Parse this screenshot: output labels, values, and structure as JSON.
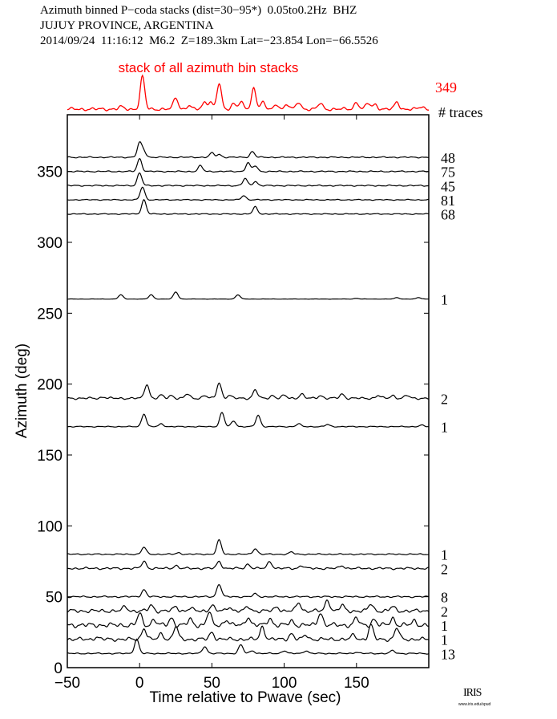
{
  "header": {
    "line1": "Azimuth binned P−coda stacks (dist=30−95*)  0.05to0.2Hz  BHZ",
    "line2": "JUJUY PROVINCE, ARGENTINA",
    "line3": "2014/09/24  11:16:12  M6.2  Z=189.3km Lat=−23.854 Lon=−66.5526"
  },
  "logo": {
    "text": "IRIS",
    "url": "www.iris.edu/spud"
  },
  "chart_data": {
    "type": "line",
    "xlabel": "Time relative to Pwave (sec)",
    "ylabel": "Azimuth (deg)",
    "xlim": [
      -50,
      200
    ],
    "ylim": [
      0,
      390
    ],
    "xticks": [
      "−50",
      "0",
      "50",
      "100",
      "150"
    ],
    "xtick_values": [
      -50,
      0,
      50,
      100,
      150
    ],
    "yticks": [
      "0",
      "50",
      "100",
      "150",
      "200",
      "250",
      "300",
      "350"
    ],
    "ytick_values": [
      0,
      50,
      100,
      150,
      200,
      250,
      300,
      350
    ],
    "count_header": "# traces",
    "stack": {
      "label": "stack of all azimuth bin stacks",
      "count": "349",
      "color": "#ff0000",
      "peaks": [
        [
          -13,
          1
        ],
        [
          2,
          14
        ],
        [
          25,
          5
        ],
        [
          34,
          1.5
        ],
        [
          45,
          3
        ],
        [
          49,
          3
        ],
        [
          55,
          11
        ],
        [
          65,
          2.5
        ],
        [
          70,
          3
        ],
        [
          79,
          9
        ],
        [
          85,
          3
        ],
        [
          95,
          2
        ],
        [
          102,
          2
        ],
        [
          110,
          3
        ],
        [
          125,
          2.5
        ],
        [
          150,
          3
        ],
        [
          158,
          2.5
        ],
        [
          163,
          2
        ],
        [
          178,
          3
        ],
        [
          195,
          1
        ]
      ],
      "noise": 0.6
    },
    "traces": [
      {
        "azimuth": 360,
        "count": "48",
        "peaks": [
          [
            0,
            10
          ],
          [
            3,
            4
          ],
          [
            50,
            3
          ],
          [
            55,
            2
          ],
          [
            78,
            4
          ]
        ],
        "noise": 0.4
      },
      {
        "azimuth": 350,
        "count": "75",
        "peaks": [
          [
            0,
            9
          ],
          [
            42,
            4
          ],
          [
            75,
            6
          ],
          [
            80,
            4
          ]
        ],
        "noise": 0.4
      },
      {
        "azimuth": 340,
        "count": "45",
        "peaks": [
          [
            0,
            9
          ],
          [
            73,
            5
          ],
          [
            80,
            3
          ]
        ],
        "noise": 0.4
      },
      {
        "azimuth": 330,
        "count": "81",
        "peaks": [
          [
            2,
            9
          ],
          [
            72,
            3
          ]
        ],
        "noise": 0.3
      },
      {
        "azimuth": 320,
        "count": "68",
        "peaks": [
          [
            3,
            10
          ],
          [
            80,
            5
          ]
        ],
        "noise": 0.3
      },
      {
        "azimuth": 260,
        "count": "1",
        "peaks": [
          [
            -13,
            3
          ],
          [
            8,
            3
          ],
          [
            25,
            5
          ],
          [
            68,
            3
          ],
          [
            150,
            0.5
          ],
          [
            178,
            1
          ],
          [
            193,
            1
          ]
        ],
        "noise": 0.1
      },
      {
        "azimuth": 190,
        "count": "2",
        "peaks": [
          [
            -25,
            1
          ],
          [
            5,
            10
          ],
          [
            15,
            2
          ],
          [
            22,
            2
          ],
          [
            33,
            3
          ],
          [
            45,
            2
          ],
          [
            55,
            11
          ],
          [
            62,
            2
          ],
          [
            80,
            6
          ],
          [
            92,
            2
          ],
          [
            100,
            2
          ],
          [
            112,
            3
          ],
          [
            125,
            2
          ],
          [
            140,
            3
          ],
          [
            165,
            2
          ],
          [
            175,
            2
          ],
          [
            185,
            2
          ]
        ],
        "noise": 0.7
      },
      {
        "azimuth": 170,
        "count": "1",
        "peaks": [
          [
            3,
            9
          ],
          [
            15,
            2
          ],
          [
            57,
            10
          ],
          [
            65,
            4
          ],
          [
            82,
            8
          ],
          [
            110,
            2
          ],
          [
            130,
            1.5
          ],
          [
            195,
            1
          ]
        ],
        "noise": 0.3
      },
      {
        "azimuth": 80,
        "count": "1",
        "peaks": [
          [
            3,
            5
          ],
          [
            27,
            1
          ],
          [
            55,
            10
          ],
          [
            80,
            4
          ],
          [
            105,
            1.5
          ]
        ],
        "noise": 0.4
      },
      {
        "azimuth": 70,
        "count": "2",
        "peaks": [
          [
            3,
            5
          ],
          [
            25,
            2
          ],
          [
            55,
            5
          ],
          [
            75,
            3
          ],
          [
            90,
            5
          ],
          [
            112,
            2
          ],
          [
            140,
            2
          ]
        ],
        "noise": 0.7
      },
      {
        "azimuth": 50,
        "count": "8",
        "peaks": [
          [
            3,
            5
          ],
          [
            55,
            9
          ],
          [
            80,
            2
          ]
        ],
        "noise": 0.5
      },
      {
        "azimuth": 40,
        "count": "2",
        "peaks": [
          [
            -10,
            3
          ],
          [
            8,
            4
          ],
          [
            25,
            3
          ],
          [
            35,
            2
          ],
          [
            50,
            4
          ],
          [
            62,
            3
          ],
          [
            75,
            3
          ],
          [
            95,
            3
          ],
          [
            110,
            6
          ],
          [
            130,
            8
          ],
          [
            140,
            4
          ],
          [
            160,
            5
          ],
          [
            175,
            3
          ]
        ],
        "noise": 1.2
      },
      {
        "azimuth": 30,
        "count": "1",
        "peaks": [
          [
            0,
            8
          ],
          [
            10,
            4
          ],
          [
            22,
            5
          ],
          [
            35,
            4
          ],
          [
            48,
            9
          ],
          [
            60,
            4
          ],
          [
            75,
            6
          ],
          [
            90,
            5
          ],
          [
            105,
            3
          ],
          [
            125,
            9
          ],
          [
            150,
            5
          ],
          [
            162,
            4
          ],
          [
            175,
            5
          ],
          [
            190,
            3
          ]
        ],
        "noise": 1.5
      },
      {
        "azimuth": 20,
        "count": "1",
        "peaks": [
          [
            -30,
            1.5
          ],
          [
            3,
            8
          ],
          [
            15,
            4
          ],
          [
            25,
            9
          ],
          [
            50,
            5
          ],
          [
            85,
            9
          ],
          [
            105,
            4
          ],
          [
            115,
            3
          ],
          [
            148,
            3
          ],
          [
            160,
            10
          ],
          [
            178,
            8
          ]
        ],
        "noise": 1.2
      },
      {
        "azimuth": 10,
        "count": "13",
        "peaks": [
          [
            -2,
            10
          ],
          [
            45,
            5
          ],
          [
            70,
            6
          ],
          [
            78,
            2
          ],
          [
            100,
            2
          ],
          [
            115,
            2
          ],
          [
            150,
            1
          ],
          [
            175,
            2
          ]
        ],
        "noise": 0.4
      }
    ]
  }
}
